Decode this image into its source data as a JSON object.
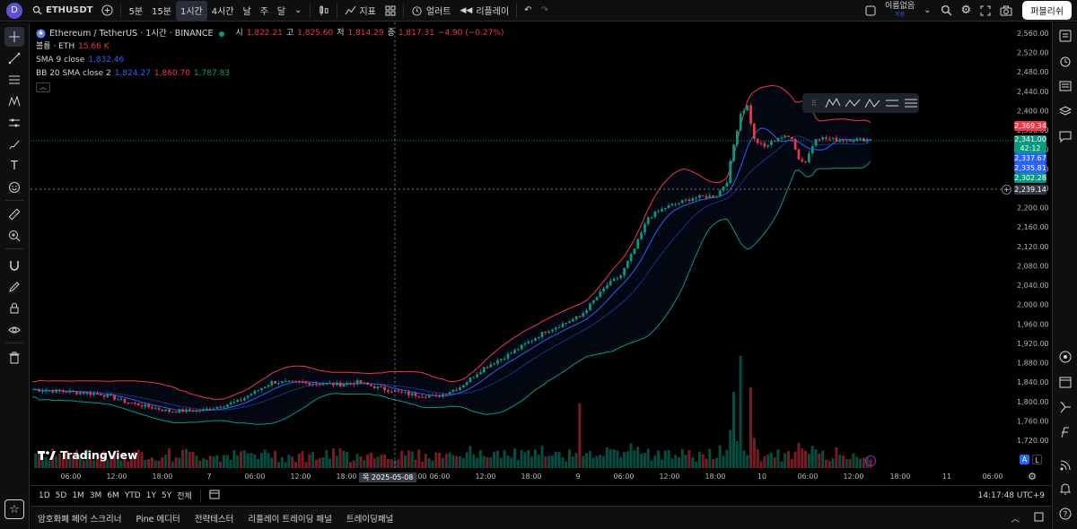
{
  "topbar": {
    "avatar": "D",
    "symbol": "ETHUSDT",
    "intervals": [
      "5분",
      "15분",
      "1시간",
      "4시간",
      "날",
      "주",
      "달"
    ],
    "active_interval": "1시간",
    "indicators_label": "지표",
    "alert_label": "얼러트",
    "replay_label": "리플레이",
    "layout_name": "이름없음",
    "layout_sub": "저장",
    "publish_label": "퍼블리쉬"
  },
  "legend": {
    "title": "Ethereum / TetherUS · 1시간 · BINANCE",
    "open_label": "시",
    "open": "1,822.21",
    "high_label": "고",
    "high": "1,825.60",
    "low_label": "저",
    "low": "1,814.29",
    "close_label": "종",
    "close": "1,817.31",
    "change": "−4.90 (−0.27%)",
    "volume_label": "볼륨 · ETH",
    "volume": "15.66 K",
    "sma_label": "SMA 9 close",
    "sma": "1,832.46",
    "bb_label": "BB 20 SMA close 2",
    "bb_basis": "1,824.27",
    "bb_upper": "1,860.70",
    "bb_lower": "1,787.83"
  },
  "price_axis": [
    "2,560.00",
    "2,520.00",
    "2,480.00",
    "2,440.00",
    "2,400.00",
    "2,360.00",
    "2,320.00",
    "2,280.00",
    "2,240.00",
    "2,200.00",
    "2,160.00",
    "2,120.00",
    "2,080.00",
    "2,040.00",
    "2,000.00",
    "1,960.00",
    "1,920.00",
    "1,880.00",
    "1,840.00",
    "1,800.00",
    "1,760.00",
    "1,720.00"
  ],
  "price_labels": {
    "upper_bb": "2,369.34",
    "last": "2,341.00",
    "countdown": "42:12",
    "sma": "2,337.67",
    "basis": "2,335.81",
    "lower_bb": "2,302.28",
    "crosshair": "2,239.14"
  },
  "time_axis": [
    "06:00",
    "12:00",
    "18:00",
    "7",
    "06:00",
    "12:00",
    "18:00",
    "00:00",
    "06:00",
    "12:00",
    "18:00",
    "9",
    "06:00",
    "12:00",
    "18:00",
    "10",
    "06:00",
    "12:00",
    "18:00",
    "11",
    "06:00"
  ],
  "crosshair_time": "목 2025-05-08",
  "axis_ctrl": {
    "auto": "A",
    "log": "L"
  },
  "watermark": "TradingView",
  "timeframes": [
    "1D",
    "5D",
    "1M",
    "3M",
    "6M",
    "YTD",
    "1Y",
    "5Y",
    "전체"
  ],
  "clock": "14:17:48 UTC+9",
  "panels": [
    "암호화폐 페어 스크리너",
    "Pine 에디터",
    "전략테스터",
    "리플레이 트레이딩 패널",
    "트레이딩패널"
  ],
  "colors": {
    "up": "#089981",
    "down": "#f23645",
    "sma": "#2962ff",
    "bb_upper": "#f23645",
    "bb_lower": "#089981"
  }
}
